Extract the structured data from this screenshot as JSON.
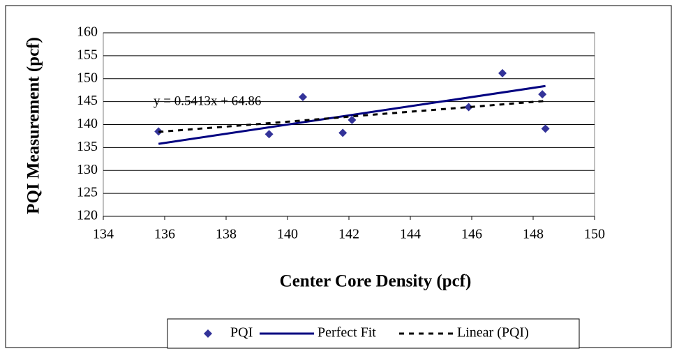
{
  "chart_data": {
    "type": "scatter",
    "xlabel": "Center Core Density (pcf)",
    "ylabel": "PQI Measurement (pcf)",
    "annotation": "y = 0.5413x + 64.86",
    "xlim": [
      134,
      150
    ],
    "xticks": [
      134,
      136,
      138,
      140,
      142,
      144,
      146,
      148,
      150
    ],
    "ylim": [
      120,
      160
    ],
    "yticks": [
      120,
      125,
      130,
      135,
      140,
      145,
      150,
      155,
      160
    ],
    "grid": true,
    "legend": "bottom",
    "series": [
      {
        "name": "PQI",
        "color": "#333399",
        "mode": "markers",
        "x": [
          135.8,
          139.4,
          140.5,
          141.8,
          142.1,
          145.9,
          147.0,
          148.3,
          148.4
        ],
        "values": [
          138.5,
          137.9,
          146.0,
          138.2,
          141.0,
          143.8,
          151.2,
          146.6,
          139.1
        ]
      },
      {
        "name": "Perfect Fit",
        "color": "#000080",
        "mode": "line",
        "x": [
          135.8,
          148.4
        ],
        "values": [
          135.8,
          148.4
        ]
      },
      {
        "name": "Linear (PQI)",
        "color": "#000000",
        "mode": "dashed",
        "x": [
          135.8,
          139.4,
          140.5,
          141.8,
          142.1,
          145.9,
          147.0,
          148.3,
          148.4
        ],
        "values": [
          138.4,
          140.3,
          140.9,
          141.6,
          141.8,
          143.8,
          144.4,
          145.1,
          145.2
        ]
      }
    ]
  }
}
